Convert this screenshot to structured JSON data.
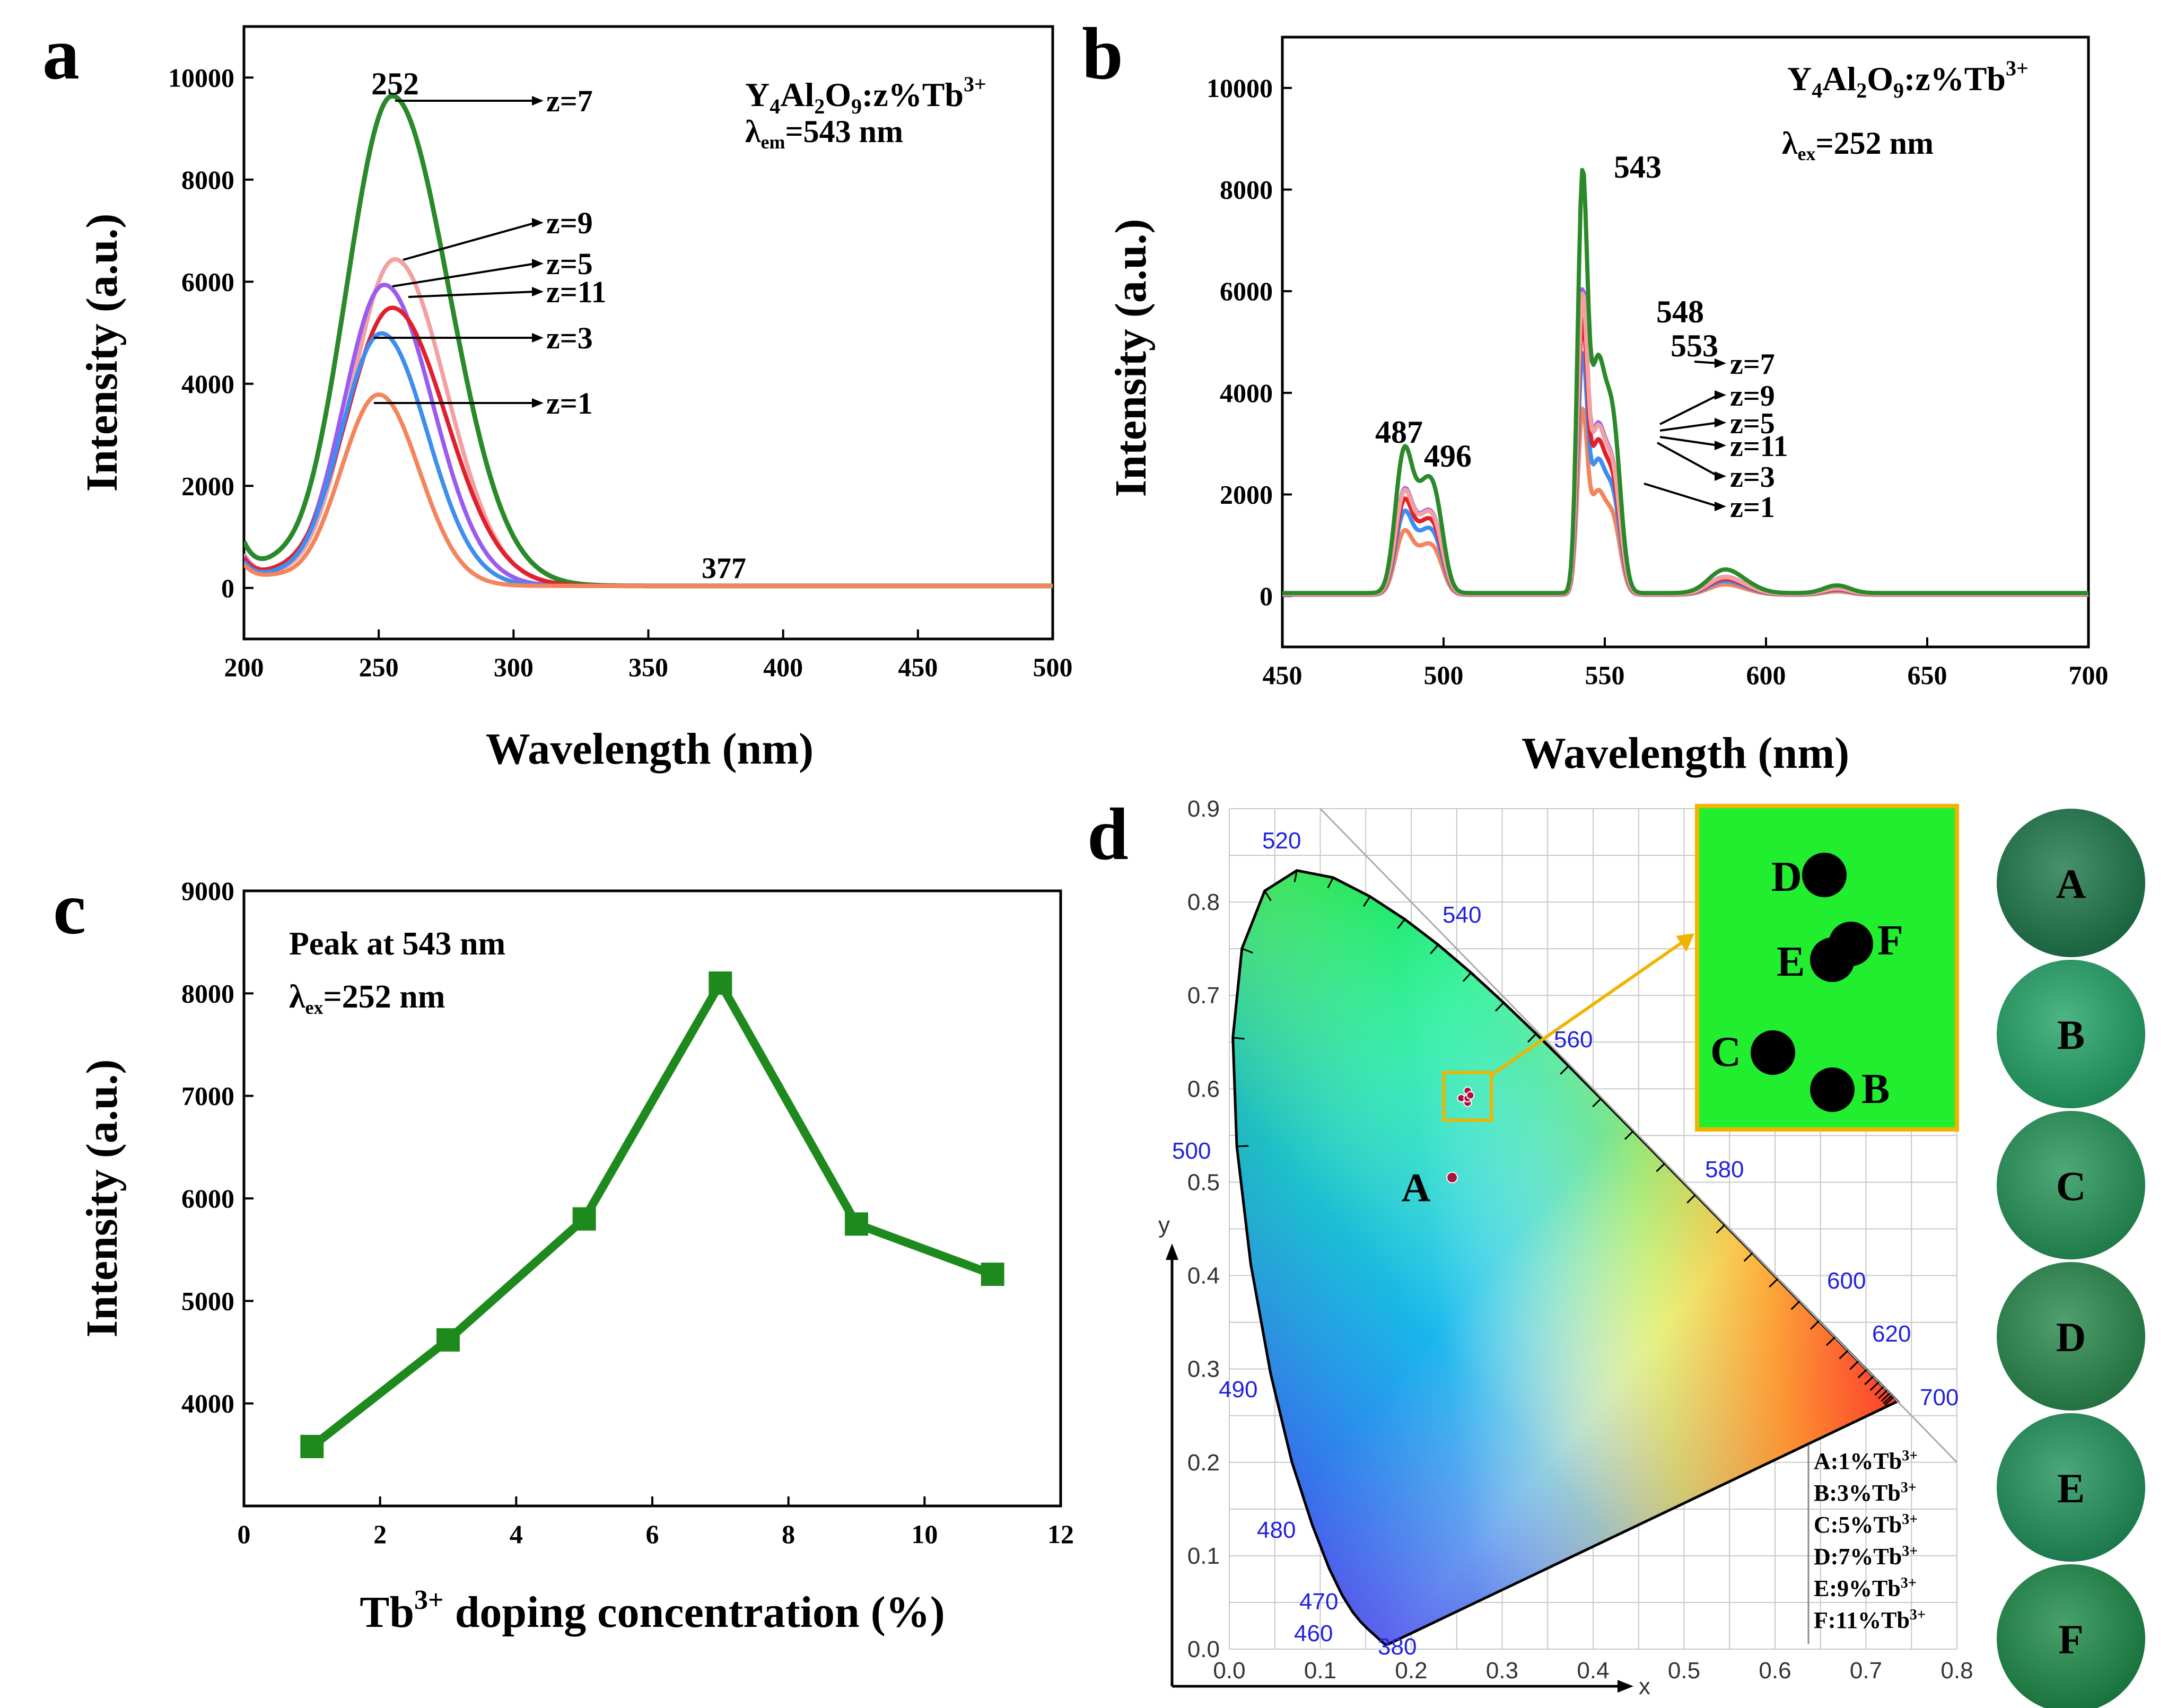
{
  "panel_letters": {
    "a": "a",
    "b": "b",
    "c": "c",
    "d": "d"
  },
  "chart_data": [
    {
      "panel": "a",
      "type": "line",
      "title_formula": {
        "base": "Y",
        "s1": "4",
        "al": "Al",
        "s2": "2",
        "o": "O",
        "s3": "9",
        "rest": ":z%Tb",
        "sup": "3+"
      },
      "subtitle": {
        "lambda": "λ",
        "sub": "em",
        "rest": "=543 nm"
      },
      "xlabel": "Wavelength (nm)",
      "ylabel": "Intensity (a.u.)",
      "xlim": [
        200,
        500
      ],
      "ylim": [
        -1000,
        11000
      ],
      "xticks": [
        "200",
        "250",
        "300",
        "350",
        "400",
        "450",
        "500"
      ],
      "yticks": [
        "0",
        "2000",
        "4000",
        "6000",
        "8000",
        "10000"
      ],
      "peak_labels": [
        "252",
        "377"
      ],
      "legend": [
        "z=7",
        "z=9",
        "z=5",
        "z=11",
        "z=3",
        "z=1"
      ],
      "series": [
        {
          "name": "z=7",
          "color": "#2a8a2a",
          "peak": 9600,
          "center": 255,
          "sigL": 17,
          "sigR": 21,
          "base": 800
        },
        {
          "name": "z=9",
          "color": "#f4a0a0",
          "peak": 6400,
          "center": 256,
          "sigL": 16,
          "sigR": 19,
          "base": 600
        },
        {
          "name": "z=5",
          "color": "#9a5cf0",
          "peak": 5900,
          "center": 252,
          "sigL": 15,
          "sigR": 18,
          "base": 550
        },
        {
          "name": "z=11",
          "color": "#e0202c",
          "peak": 5450,
          "center": 255,
          "sigL": 17,
          "sigR": 20,
          "base": 500
        },
        {
          "name": "z=3",
          "color": "#3d8ef0",
          "peak": 4950,
          "center": 251,
          "sigL": 15,
          "sigR": 17,
          "base": 450
        },
        {
          "name": "z=1",
          "color": "#f4845c",
          "peak": 3750,
          "center": 250,
          "sigL": 14,
          "sigR": 15,
          "base": 400
        }
      ]
    },
    {
      "panel": "b",
      "type": "line",
      "title_formula": {
        "base": "Y",
        "s1": "4",
        "al": "Al",
        "s2": "2",
        "o": "O",
        "s3": "9",
        "rest": ":z%Tb",
        "sup": "3+"
      },
      "subtitle": {
        "lambda": "λ",
        "sub": "ex",
        "rest": "=252 nm"
      },
      "xlabel": "Wavelength (nm)",
      "ylabel": "Intensity (a.u.)",
      "xlim": [
        450,
        700
      ],
      "ylim": [
        -1000,
        11000
      ],
      "xticks": [
        "450",
        "500",
        "550",
        "600",
        "650",
        "700"
      ],
      "yticks": [
        "0",
        "2000",
        "4000",
        "6000",
        "8000",
        "10000"
      ],
      "peak_labels": [
        "487",
        "496",
        "543",
        "548",
        "553"
      ],
      "legend": [
        "z=7",
        "z=9",
        "z=5",
        "z=11",
        "z=3",
        "z=1"
      ],
      "series": [
        {
          "name": "z=7",
          "color": "#2a8a2a",
          "scale": 1.0
        },
        {
          "name": "z=9",
          "color": "#f4a0a0",
          "scale": 0.71
        },
        {
          "name": "z=5",
          "color": "#9a5cf0",
          "scale": 0.72
        },
        {
          "name": "z=11",
          "color": "#e0202c",
          "scale": 0.65
        },
        {
          "name": "z=3",
          "color": "#3d8ef0",
          "scale": 0.57
        },
        {
          "name": "z=1",
          "color": "#f4845c",
          "scale": 0.44
        }
      ]
    },
    {
      "panel": "c",
      "type": "line",
      "annotation": "Peak at 543 nm",
      "subtitle": {
        "lambda": "λ",
        "sub": "ex",
        "rest": "=252 nm"
      },
      "xlabel_parts": {
        "pre": "Tb",
        "sup": "3+",
        "post": " doping concentration (%)"
      },
      "ylabel": "Intensity (a.u.)",
      "xlim": [
        0,
        12
      ],
      "ylim": [
        3000,
        9000
      ],
      "xticks": [
        "0",
        "2",
        "4",
        "6",
        "8",
        "10",
        "12"
      ],
      "yticks": [
        "4000",
        "5000",
        "6000",
        "7000",
        "8000",
        "9000"
      ],
      "x": [
        1,
        3,
        5,
        7,
        9,
        11
      ],
      "values": [
        3580,
        4620,
        5800,
        8100,
        5750,
        5260
      ],
      "color": "#1e8a1e"
    },
    {
      "panel": "d",
      "type": "scatter",
      "xlabel": "x",
      "ylabel": "y",
      "xlim": [
        0.0,
        0.8
      ],
      "ylim": [
        0.0,
        0.9
      ],
      "xticks": [
        "0.0",
        "0.1",
        "0.2",
        "0.3",
        "0.4",
        "0.5",
        "0.6",
        "0.7",
        "0.8"
      ],
      "yticks": [
        "0.0",
        "0.1",
        "0.2",
        "0.3",
        "0.4",
        "0.5",
        "0.6",
        "0.7",
        "0.8",
        "0.9"
      ],
      "wavelength_labels": [
        "380",
        "460",
        "470",
        "480",
        "490",
        "500",
        "520",
        "540",
        "560",
        "580",
        "600",
        "620",
        "700"
      ],
      "points": [
        {
          "label": "A",
          "x": 0.245,
          "y": 0.505
        },
        {
          "label": "B",
          "x": 0.262,
          "y": 0.585
        },
        {
          "label": "C",
          "x": 0.255,
          "y": 0.59
        },
        {
          "label": "D",
          "x": 0.262,
          "y": 0.598
        },
        {
          "label": "E",
          "x": 0.262,
          "y": 0.59
        },
        {
          "label": "F",
          "x": 0.265,
          "y": 0.593
        }
      ],
      "legend": [
        {
          "pre": "A:1%Tb",
          "sup": "3+"
        },
        {
          "pre": "B:3%Tb",
          "sup": "3+"
        },
        {
          "pre": "C:5%Tb",
          "sup": "3+"
        },
        {
          "pre": "D:7%Tb",
          "sup": "3+"
        },
        {
          "pre": "E:9%Tb",
          "sup": "3+"
        },
        {
          "pre": "F:11%Tb",
          "sup": "3+"
        }
      ],
      "inset_labels": [
        "D",
        "F",
        "E",
        "C",
        "B"
      ],
      "photo_labels": [
        "A",
        "B",
        "C",
        "D",
        "E",
        "F"
      ],
      "photo_colors": [
        "#1f7a4c",
        "#26a468",
        "#27965a",
        "#2b8a4e",
        "#22945e",
        "#1f8c4a"
      ]
    }
  ]
}
